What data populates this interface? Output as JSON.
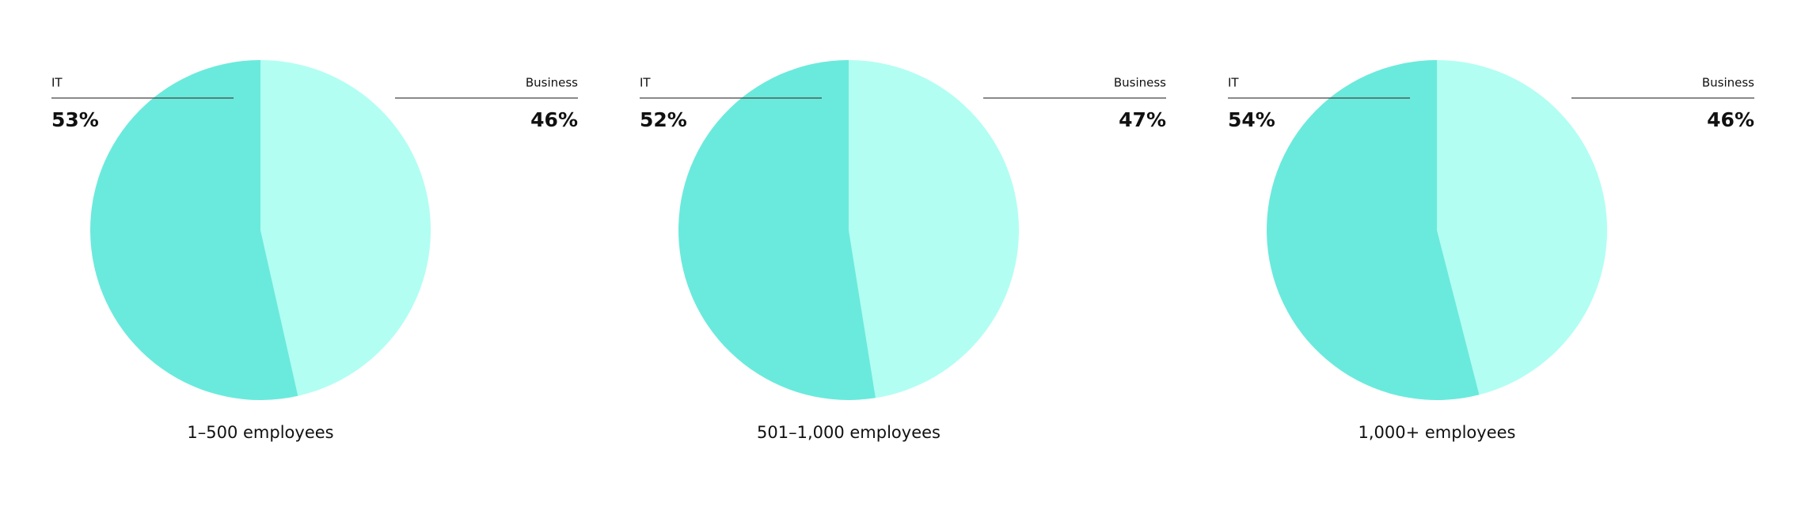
{
  "chart_data": [
    {
      "type": "pie",
      "title": "1–500 employees",
      "categories": [
        "IT",
        "Business"
      ],
      "values": [
        53,
        46
      ],
      "value_labels": [
        "53%",
        "46%"
      ],
      "colors": [
        "#6aeadc",
        "#b2fef2"
      ]
    },
    {
      "type": "pie",
      "title": "501–1,000 employees",
      "categories": [
        "IT",
        "Business"
      ],
      "values": [
        52,
        47
      ],
      "value_labels": [
        "52%",
        "47%"
      ],
      "colors": [
        "#6aeadc",
        "#b2fef2"
      ]
    },
    {
      "type": "pie",
      "title": "1,000+ employees",
      "categories": [
        "IT",
        "Business"
      ],
      "values": [
        54,
        46
      ],
      "value_labels": [
        "54%",
        "46%"
      ],
      "colors": [
        "#6aeadc",
        "#b2fef2"
      ]
    }
  ]
}
